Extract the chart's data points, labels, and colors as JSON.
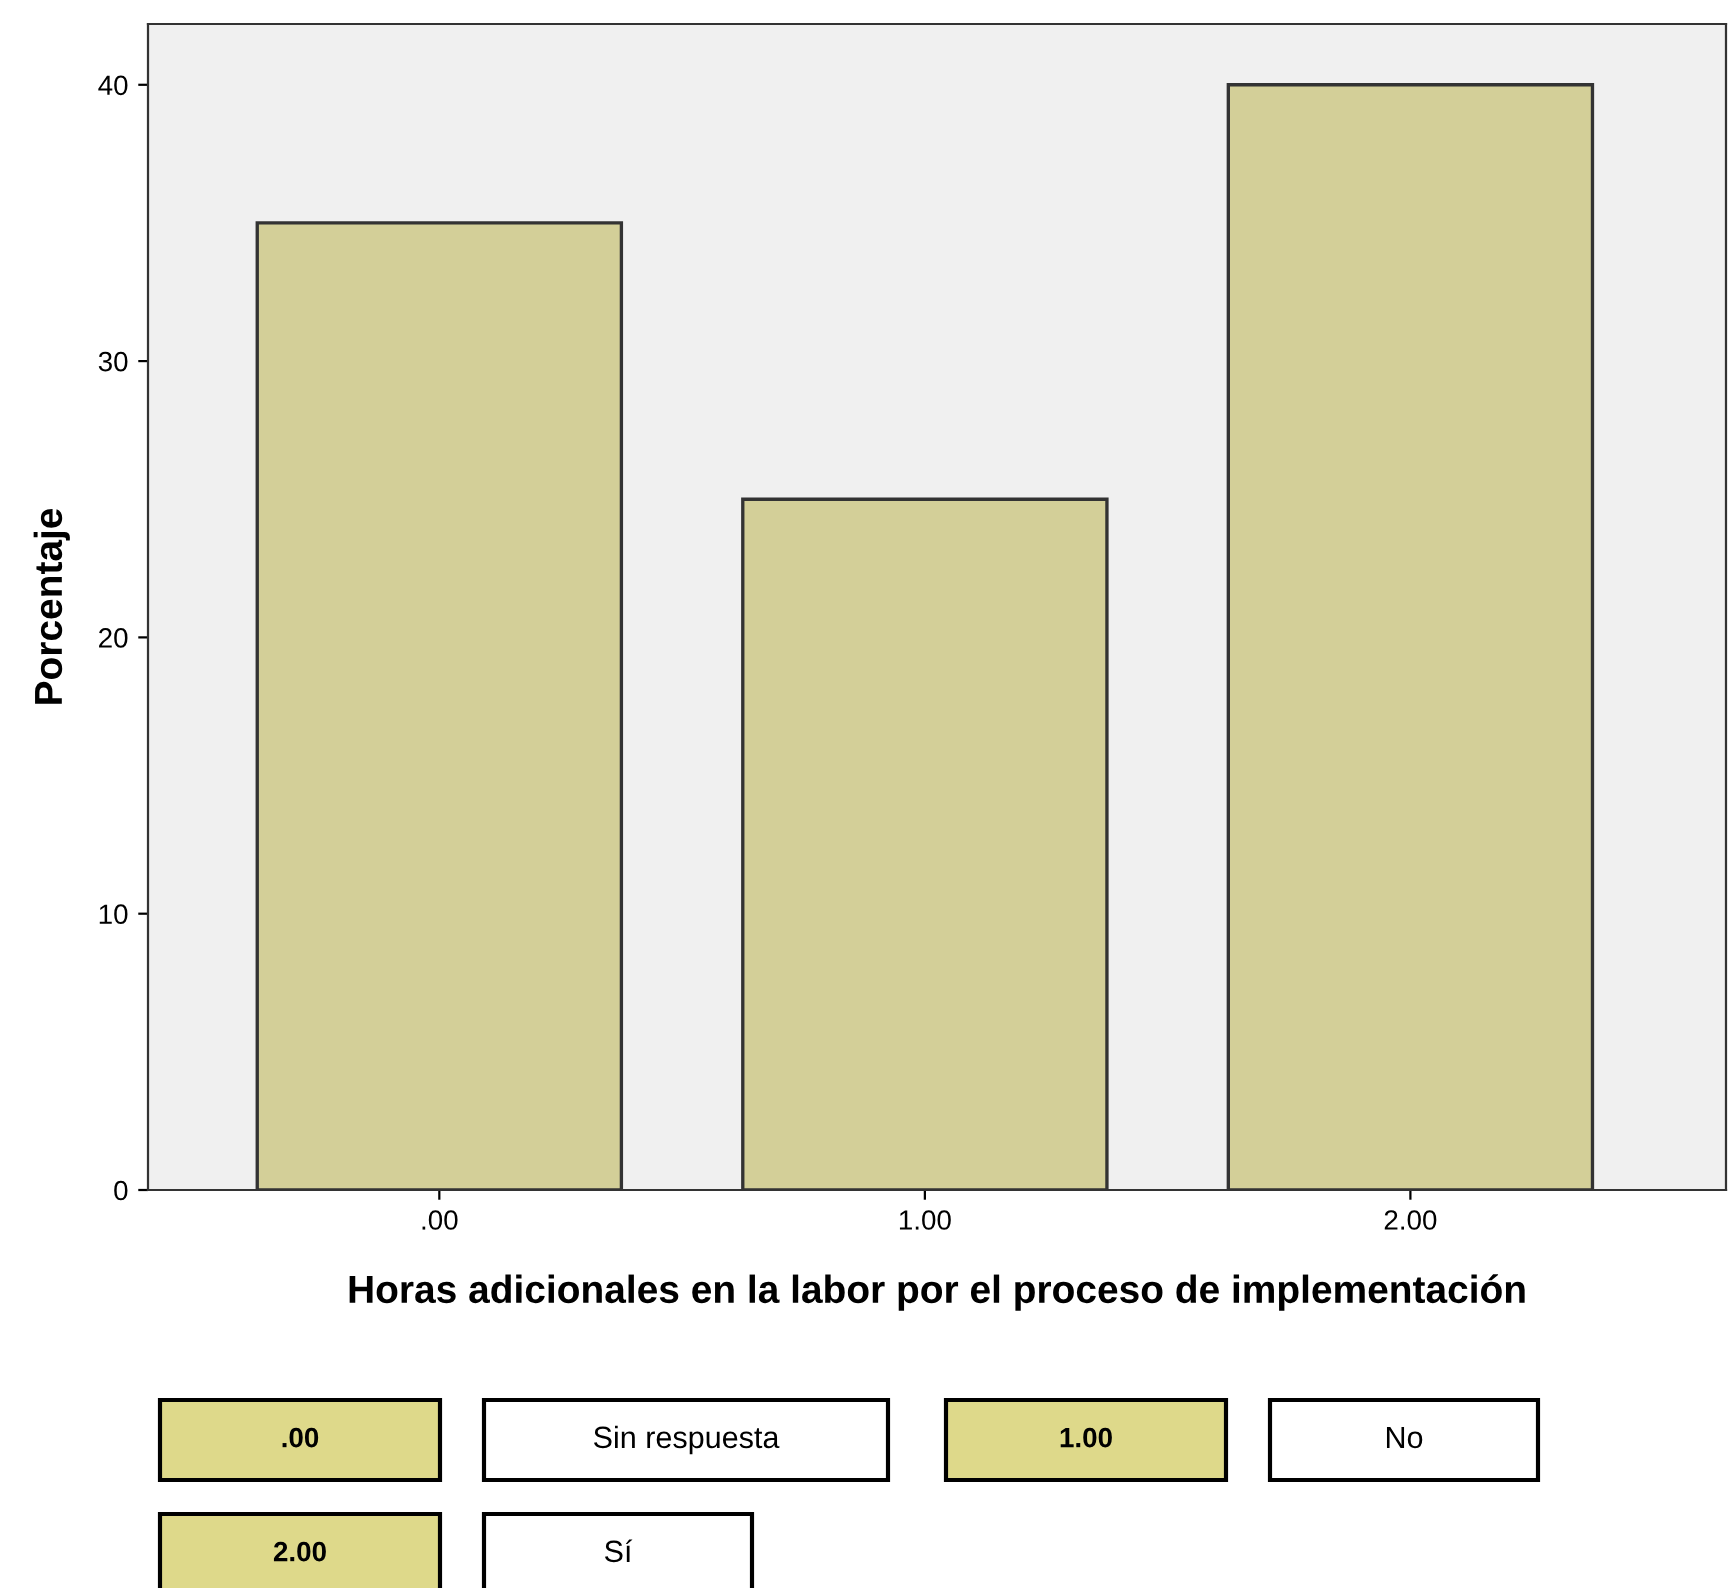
{
  "chart_data": {
    "type": "bar",
    "categories": [
      ".00",
      "1.00",
      "2.00"
    ],
    "values": [
      35,
      25,
      40
    ],
    "color": "#d3cf98",
    "xlabel": "Horas adicionales en la labor por el proceso de implementación",
    "ylabel": "Porcentaje",
    "ylim": [
      0,
      42.2
    ],
    "yticks": [
      0,
      10,
      20,
      30,
      40
    ],
    "grid": false,
    "annotations": [
      ".00",
      "Sin respuesta",
      "1.00",
      "No",
      "2.00",
      "Sí"
    ]
  }
}
